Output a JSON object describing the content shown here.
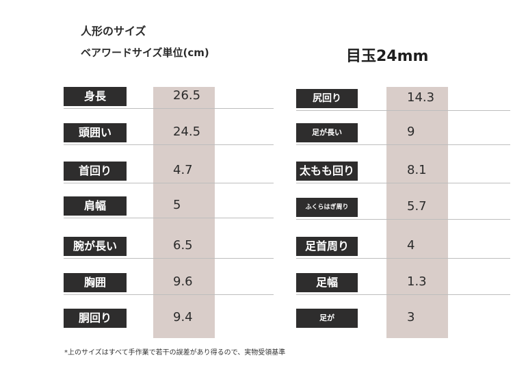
{
  "header": {
    "title": "人形のサイズ",
    "subtitle": "ベアワードサイズ単位(cm)",
    "eye": "目玉24mm"
  },
  "left_table": [
    {
      "label": "身長",
      "value": "26.5"
    },
    {
      "label": "頭囲い",
      "value": "24.5"
    },
    {
      "label": "首回り",
      "value": "4.7"
    },
    {
      "label": "肩幅",
      "value": "5"
    },
    {
      "label": "腕が長い",
      "value": "6.5"
    },
    {
      "label": "胸囲",
      "value": "9.6"
    },
    {
      "label": "胴回り",
      "value": "9.4"
    }
  ],
  "right_table": [
    {
      "label": "尻回り",
      "value": "14.3"
    },
    {
      "label": "足が長い",
      "value": "9"
    },
    {
      "label": "太もも回り",
      "value": "8.1"
    },
    {
      "label": "ふくらはぎ周り",
      "value": "5.7"
    },
    {
      "label": "足首周り",
      "value": "4"
    },
    {
      "label": "足幅",
      "value": "1.3"
    },
    {
      "label": "足が",
      "value": "3"
    }
  ],
  "footer": {
    "note": "*上のサイズはすべて手作業で若干の誤差があり得るので、実物受領基準"
  }
}
